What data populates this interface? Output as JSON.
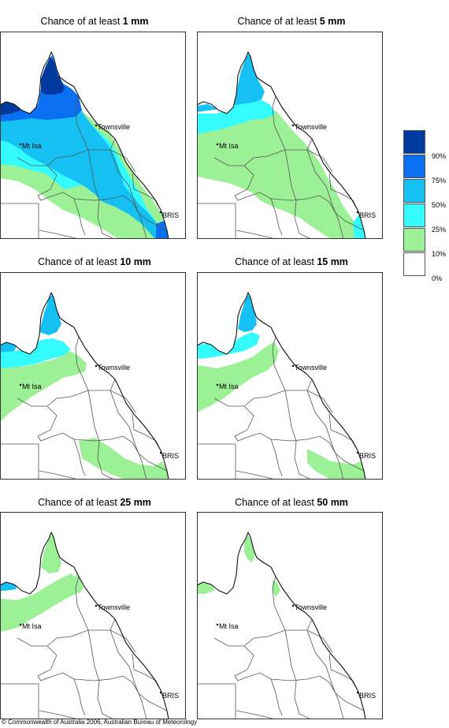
{
  "panels": [
    {
      "title_prefix": "Chance of at least ",
      "threshold": "1 mm"
    },
    {
      "title_prefix": "Chance of at least ",
      "threshold": "5 mm"
    },
    {
      "title_prefix": "Chance of at least ",
      "threshold": "10 mm"
    },
    {
      "title_prefix": "Chance of at least ",
      "threshold": "15 mm"
    },
    {
      "title_prefix": "Chance of at least ",
      "threshold": "25 mm"
    },
    {
      "title_prefix": "Chance of at least ",
      "threshold": "50 mm"
    }
  ],
  "map_labels": {
    "townsville": "Townsville",
    "mt_isa": "Mt Isa",
    "brisbane": "BRIS"
  },
  "legend": {
    "labels": [
      "90%",
      "75%",
      "50%",
      "25%",
      "10%",
      "0%"
    ],
    "colors": [
      "#003a9e",
      "#0a6ff0",
      "#14c1f2",
      "#33fbff",
      "#9cf096",
      "#ffffff"
    ]
  },
  "copyright": "© Commonwealth of Australia 2006, Australian Bureau of Meteorology"
}
